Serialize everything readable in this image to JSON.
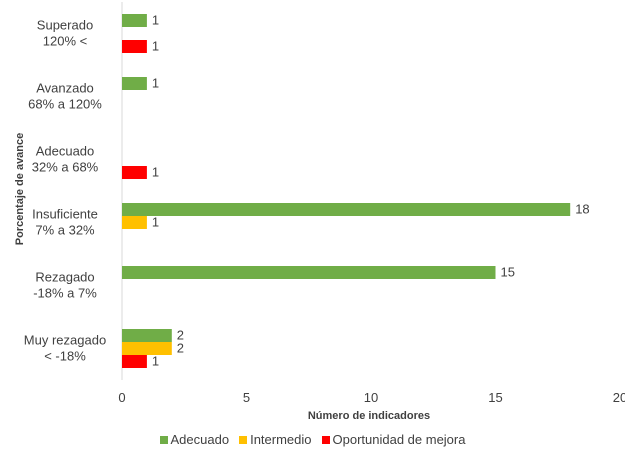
{
  "chart_data": {
    "type": "bar",
    "orientation": "horizontal",
    "categories": [
      [
        "Superado",
        "120% <"
      ],
      [
        "Avanzado",
        "68% a 120%"
      ],
      [
        "Adecuado",
        "32% a 68%"
      ],
      [
        "Insuficiente",
        "7% a 32%"
      ],
      [
        "Rezagado",
        "-18% a 7%"
      ],
      [
        "Muy rezagado",
        "< -18%"
      ]
    ],
    "series": [
      {
        "name": "Adecuado",
        "color": "#70ad47",
        "values": [
          1,
          1,
          null,
          18,
          15,
          2
        ]
      },
      {
        "name": "Intermedio",
        "color": "#ffc000",
        "values": [
          null,
          null,
          null,
          1,
          null,
          2
        ]
      },
      {
        "name": "Oportunidad de mejora",
        "color": "#ff0000",
        "values": [
          1,
          null,
          1,
          null,
          null,
          1
        ]
      }
    ],
    "xlabel": "Número de indicadores",
    "ylabel": "Porcentaje de avance",
    "xlim": [
      0,
      20
    ],
    "xticks": [
      "0",
      "5",
      "10",
      "15",
      "20"
    ],
    "grid": false,
    "legend_position": "bottom"
  }
}
